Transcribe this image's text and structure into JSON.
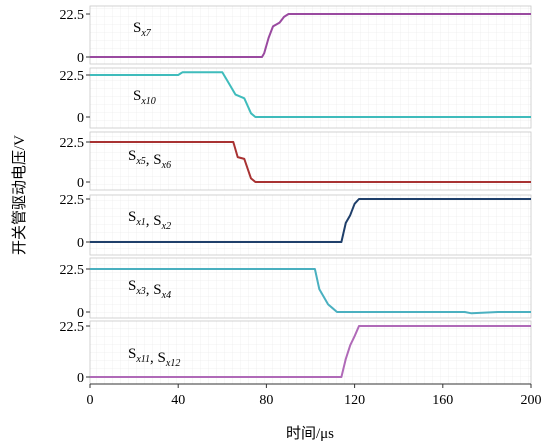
{
  "chart_data": {
    "type": "line",
    "xlabel": "时间/μs",
    "ylabel": "开关管驱动电压/V",
    "xlim": [
      0,
      200
    ],
    "xticks": [
      "0",
      "40",
      "80",
      "120",
      "160",
      "200"
    ],
    "xtick_values": [
      0,
      40,
      80,
      120,
      160,
      200
    ],
    "ylim": [
      0,
      22.5
    ],
    "yticks": [
      "0",
      "22.5"
    ],
    "ytick_values": [
      0,
      22.5
    ],
    "grid": true,
    "panels": [
      {
        "label": "S",
        "sub": "x7",
        "color": "#9a4aa0",
        "points": [
          [
            0,
            0
          ],
          [
            78,
            0
          ],
          [
            79,
            2
          ],
          [
            81,
            10
          ],
          [
            83,
            16
          ],
          [
            86,
            18
          ],
          [
            88,
            21
          ],
          [
            90,
            22.5
          ],
          [
            200,
            22.5
          ]
        ]
      },
      {
        "label": "S",
        "sub": "x10",
        "color": "#3fbcbc",
        "points": [
          [
            0,
            22.5
          ],
          [
            40,
            22.5
          ],
          [
            42,
            24
          ],
          [
            60,
            24
          ],
          [
            63,
            18
          ],
          [
            66,
            12
          ],
          [
            70,
            10
          ],
          [
            73,
            2
          ],
          [
            75,
            0
          ],
          [
            200,
            0
          ]
        ]
      },
      {
        "label": "S",
        "sub": "x5",
        "color": "#a83232",
        "points": [
          [
            0,
            22.5
          ],
          [
            65,
            22.5
          ],
          [
            67,
            14
          ],
          [
            70,
            13
          ],
          [
            73,
            2
          ],
          [
            75,
            0
          ],
          [
            200,
            0
          ]
        ]
      },
      {
        "label": "S",
        "sub": "x1",
        "color": "#1f3f6a",
        "points": [
          [
            0,
            0
          ],
          [
            114,
            0
          ],
          [
            116,
            10
          ],
          [
            118,
            14
          ],
          [
            120,
            20
          ],
          [
            122,
            22.5
          ],
          [
            200,
            22.5
          ]
        ]
      },
      {
        "label": "S",
        "sub": "x3",
        "color": "#4ab0c0",
        "points": [
          [
            0,
            22.5
          ],
          [
            102,
            22.5
          ],
          [
            104,
            12
          ],
          [
            106,
            8
          ],
          [
            108,
            4
          ],
          [
            110,
            2
          ],
          [
            112,
            0
          ],
          [
            170,
            0
          ],
          [
            173,
            -0.7
          ],
          [
            185,
            0
          ],
          [
            200,
            0
          ]
        ]
      },
      {
        "label": "S",
        "sub": "x11",
        "color": "#b06ab8",
        "points": [
          [
            0,
            0
          ],
          [
            114,
            0
          ],
          [
            116,
            8
          ],
          [
            118,
            14
          ],
          [
            120,
            18
          ],
          [
            122,
            22.5
          ],
          [
            200,
            22.5
          ]
        ]
      }
    ],
    "panel_labels": [
      {
        "parts": [
          "S",
          "x7"
        ]
      },
      {
        "parts": [
          "S",
          "x10"
        ]
      },
      {
        "parts": [
          "S",
          "x5",
          "S",
          "x6"
        ]
      },
      {
        "parts": [
          "S",
          "x1",
          "S",
          "x2"
        ]
      },
      {
        "parts": [
          "S",
          "x3",
          "S",
          "x4"
        ]
      },
      {
        "parts": [
          "S",
          "x11",
          "S",
          "x12"
        ]
      }
    ]
  }
}
